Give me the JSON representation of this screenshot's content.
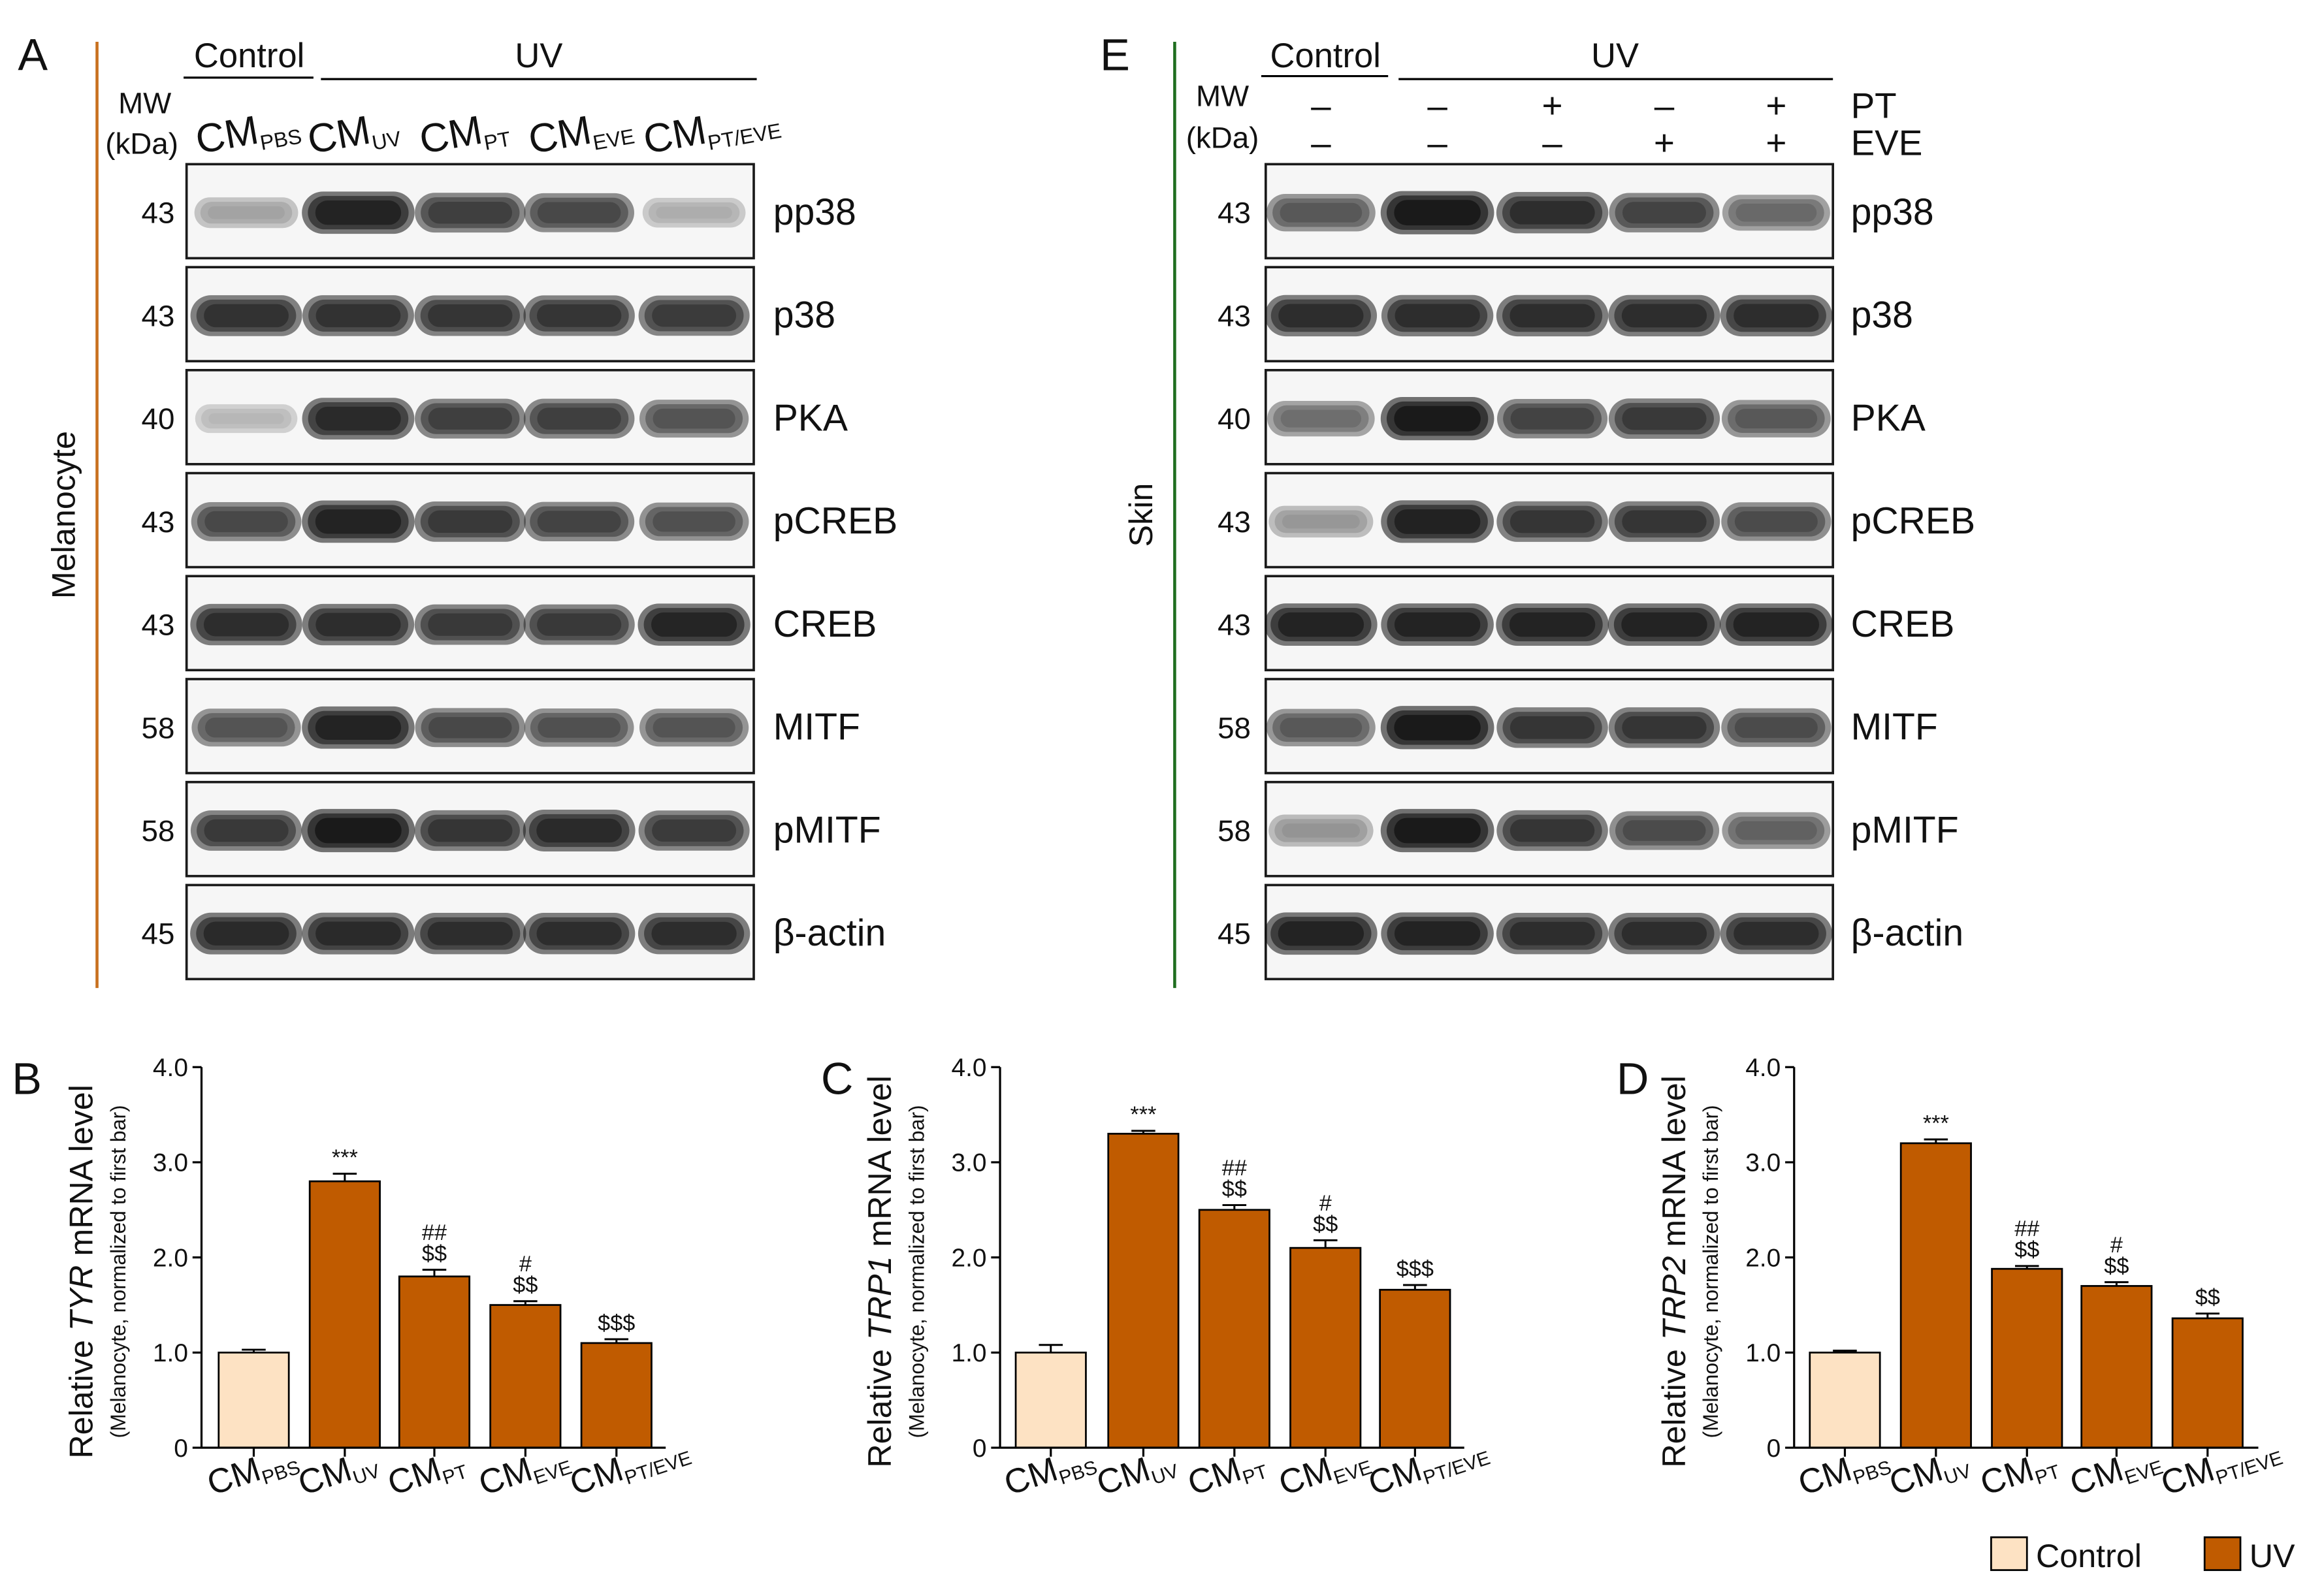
{
  "blot_panels": [
    {
      "letter": "A",
      "side_label": "Melanocyte",
      "side_color": "#c8701e",
      "group_control": "Control",
      "group_uv": "UV",
      "mw_label": "MW",
      "kda_label": "(kDa)",
      "lanes": [
        {
          "main": "CM",
          "sub": "PBS"
        },
        {
          "main": "CM",
          "sub": "UV"
        },
        {
          "main": "CM",
          "sub": "PT"
        },
        {
          "main": "CM",
          "sub": "EVE"
        },
        {
          "main": "CM",
          "sub": "PT/EVE"
        }
      ],
      "rows": [
        {
          "mw": "43",
          "protein": "pp38",
          "intensity": [
            0.35,
            0.95,
            0.82,
            0.78,
            0.3
          ]
        },
        {
          "mw": "43",
          "protein": "p38",
          "intensity": [
            0.88,
            0.88,
            0.86,
            0.86,
            0.84
          ]
        },
        {
          "mw": "40",
          "protein": "PKA",
          "intensity": [
            0.25,
            0.92,
            0.82,
            0.82,
            0.72
          ]
        },
        {
          "mw": "43",
          "protein": "pCREB",
          "intensity": [
            0.78,
            0.95,
            0.85,
            0.8,
            0.74
          ]
        },
        {
          "mw": "43",
          "protein": "CREB",
          "intensity": [
            0.9,
            0.9,
            0.85,
            0.85,
            0.94
          ]
        },
        {
          "mw": "58",
          "protein": "MITF",
          "intensity": [
            0.72,
            0.95,
            0.78,
            0.74,
            0.72
          ]
        },
        {
          "mw": "58",
          "protein": "pMITF",
          "intensity": [
            0.85,
            1.0,
            0.86,
            0.92,
            0.84
          ]
        },
        {
          "mw": "45",
          "protein": "β-actin",
          "intensity": [
            0.92,
            0.92,
            0.9,
            0.9,
            0.9
          ]
        }
      ]
    },
    {
      "letter": "E",
      "side_label": "Skin",
      "side_color": "#1f6e1f",
      "group_control": "Control",
      "group_uv": "UV",
      "mw_label": "MW",
      "kda_label": "(kDa)",
      "treatments": [
        {
          "name": "PT",
          "signs": [
            "–",
            "–",
            "+",
            "–",
            "+"
          ]
        },
        {
          "name": "EVE",
          "signs": [
            "–",
            "–",
            "–",
            "+",
            "+"
          ]
        }
      ],
      "rows": [
        {
          "mw": "43",
          "protein": "pp38",
          "intensity": [
            0.7,
            1.0,
            0.9,
            0.8,
            0.62
          ]
        },
        {
          "mw": "43",
          "protein": "p38",
          "intensity": [
            0.9,
            0.9,
            0.9,
            0.9,
            0.9
          ]
        },
        {
          "mw": "40",
          "protein": "PKA",
          "intensity": [
            0.6,
            1.0,
            0.8,
            0.85,
            0.7
          ]
        },
        {
          "mw": "43",
          "protein": "pCREB",
          "intensity": [
            0.4,
            0.96,
            0.86,
            0.86,
            0.76
          ]
        },
        {
          "mw": "43",
          "protein": "CREB",
          "intensity": [
            0.95,
            0.95,
            0.95,
            0.95,
            0.95
          ]
        },
        {
          "mw": "58",
          "protein": "MITF",
          "intensity": [
            0.7,
            1.0,
            0.86,
            0.86,
            0.76
          ]
        },
        {
          "mw": "58",
          "protein": "pMITF",
          "intensity": [
            0.42,
            1.0,
            0.86,
            0.76,
            0.66
          ]
        },
        {
          "mw": "45",
          "protein": "β-actin",
          "intensity": [
            0.95,
            0.95,
            0.9,
            0.9,
            0.9
          ]
        }
      ]
    }
  ],
  "chart_data": [
    {
      "panel": "B",
      "type": "bar",
      "categories": [
        {
          "main": "CM",
          "sub": "PBS"
        },
        {
          "main": "CM",
          "sub": "UV"
        },
        {
          "main": "CM",
          "sub": "PT"
        },
        {
          "main": "CM",
          "sub": "EVE"
        },
        {
          "main": "CM",
          "sub": "PT/EVE"
        }
      ],
      "values": [
        1.0,
        2.8,
        1.8,
        1.5,
        1.1
      ],
      "errors": [
        0.03,
        0.08,
        0.07,
        0.04,
        0.04
      ],
      "bar_colors": [
        "#fde2c3",
        "#c05b00",
        "#c05b00",
        "#c05b00",
        "#c05b00"
      ],
      "annotations": [
        [],
        [
          "***"
        ],
        [
          "##",
          "$$"
        ],
        [
          "#",
          "$$"
        ],
        [
          "$$$"
        ]
      ],
      "ylabel": {
        "prefix": "Relative ",
        "gene": "TYR",
        "suffix": " mRNA level",
        "note": "(Melanocyte, normalized to first bar)"
      },
      "ylim": [
        0,
        4
      ],
      "yticks": [
        {
          "value": 0,
          "label": "0"
        },
        {
          "value": 1,
          "label": "1.0"
        },
        {
          "value": 2,
          "label": "2.0"
        },
        {
          "value": 3,
          "label": "3.0"
        },
        {
          "value": 4,
          "label": "4.0"
        }
      ]
    },
    {
      "panel": "C",
      "type": "bar",
      "categories": [
        {
          "main": "CM",
          "sub": "PBS"
        },
        {
          "main": "CM",
          "sub": "UV"
        },
        {
          "main": "CM",
          "sub": "PT"
        },
        {
          "main": "CM",
          "sub": "EVE"
        },
        {
          "main": "CM",
          "sub": "PT/EVE"
        }
      ],
      "values": [
        1.0,
        3.3,
        2.5,
        2.1,
        1.66
      ],
      "errors": [
        0.08,
        0.03,
        0.05,
        0.08,
        0.05
      ],
      "bar_colors": [
        "#fde2c3",
        "#c05b00",
        "#c05b00",
        "#c05b00",
        "#c05b00"
      ],
      "annotations": [
        [],
        [
          "***"
        ],
        [
          "##",
          "$$"
        ],
        [
          "#",
          "$$"
        ],
        [
          "$$$"
        ]
      ],
      "ylabel": {
        "prefix": "Relative ",
        "gene": "TRP1",
        "suffix": " mRNA level",
        "note": "(Melanocyte, normalized to first bar)"
      },
      "ylim": [
        0,
        4
      ],
      "yticks": [
        {
          "value": 0,
          "label": "0"
        },
        {
          "value": 1,
          "label": "1.0"
        },
        {
          "value": 2,
          "label": "2.0"
        },
        {
          "value": 3,
          "label": "3.0"
        },
        {
          "value": 4,
          "label": "4.0"
        }
      ]
    },
    {
      "panel": "D",
      "type": "bar",
      "categories": [
        {
          "main": "CM",
          "sub": "PBS"
        },
        {
          "main": "CM",
          "sub": "UV"
        },
        {
          "main": "CM",
          "sub": "PT"
        },
        {
          "main": "CM",
          "sub": "EVE"
        },
        {
          "main": "CM",
          "sub": "PT/EVE"
        }
      ],
      "values": [
        1.0,
        3.2,
        1.88,
        1.7,
        1.36
      ],
      "errors": [
        0.02,
        0.04,
        0.03,
        0.04,
        0.05
      ],
      "bar_colors": [
        "#fde2c3",
        "#c05b00",
        "#c05b00",
        "#c05b00",
        "#c05b00"
      ],
      "annotations": [
        [],
        [
          "***"
        ],
        [
          "##",
          "$$"
        ],
        [
          "#",
          "$$"
        ],
        [
          "$$"
        ]
      ],
      "ylabel": {
        "prefix": "Relative ",
        "gene": "TRP2",
        "suffix": " mRNA level",
        "note": "(Melanocyte, normalized to first bar)"
      },
      "ylim": [
        0,
        4
      ],
      "yticks": [
        {
          "value": 0,
          "label": "0"
        },
        {
          "value": 1,
          "label": "1.0"
        },
        {
          "value": 2,
          "label": "2.0"
        },
        {
          "value": 3,
          "label": "3.0"
        },
        {
          "value": 4,
          "label": "4.0"
        }
      ]
    }
  ],
  "legend": [
    {
      "label": "Control",
      "color": "#fde2c3"
    },
    {
      "label": "UV",
      "color": "#c05b00"
    }
  ]
}
